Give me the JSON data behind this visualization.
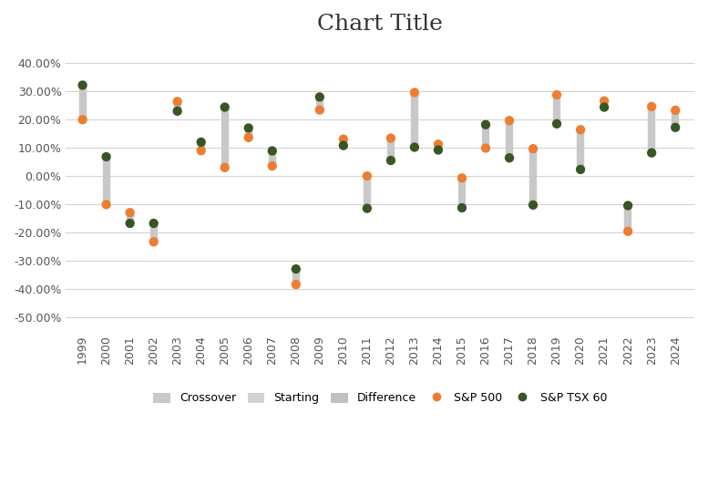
{
  "title": "Chart Title",
  "years": [
    1999,
    2000,
    2001,
    2002,
    2003,
    2004,
    2005,
    2006,
    2007,
    2008,
    2009,
    2010,
    2011,
    2012,
    2013,
    2014,
    2015,
    2016,
    2017,
    2018,
    2019,
    2020,
    2021,
    2022,
    2023,
    2024
  ],
  "sp500": [
    0.1996,
    -0.1014,
    -0.13,
    -0.2337,
    0.2638,
    0.0899,
    0.03,
    0.1362,
    0.0353,
    -0.385,
    0.234,
    0.1306,
    0.0,
    0.1341,
    0.296,
    0.1125,
    -0.0073,
    0.0988,
    0.1966,
    0.0965,
    0.2878,
    0.164,
    0.266,
    -0.1964,
    0.246,
    0.233
  ],
  "tsx60": [
    0.322,
    0.068,
    -0.168,
    -0.168,
    0.23,
    0.12,
    0.244,
    0.17,
    0.089,
    -0.33,
    0.28,
    0.108,
    -0.115,
    0.055,
    0.102,
    0.092,
    -0.113,
    0.182,
    0.064,
    -0.103,
    0.185,
    0.023,
    0.244,
    -0.105,
    0.082,
    0.172
  ],
  "bar_color": "#c8c8c8",
  "sp500_color": "#ed7d31",
  "tsx60_color": "#375623",
  "legend_labels": [
    "Crossover",
    "Starting",
    "Difference",
    "S&P 500",
    "S&P TSX 60"
  ],
  "ylim": [
    -0.55,
    0.45
  ],
  "yticks": [
    -0.5,
    -0.4,
    -0.3,
    -0.2,
    -0.1,
    0.0,
    0.1,
    0.2,
    0.3,
    0.4
  ],
  "ytick_labels": [
    "-50.00%",
    "-40.00%",
    "-30.00%",
    "-20.00%",
    "-10.00%",
    "0.00%",
    "10.00%",
    "20.00%",
    "30.00%",
    "40.00%"
  ],
  "background_color": "#ffffff",
  "title_fontsize": 18,
  "tick_fontsize": 9,
  "legend_fontsize": 9
}
